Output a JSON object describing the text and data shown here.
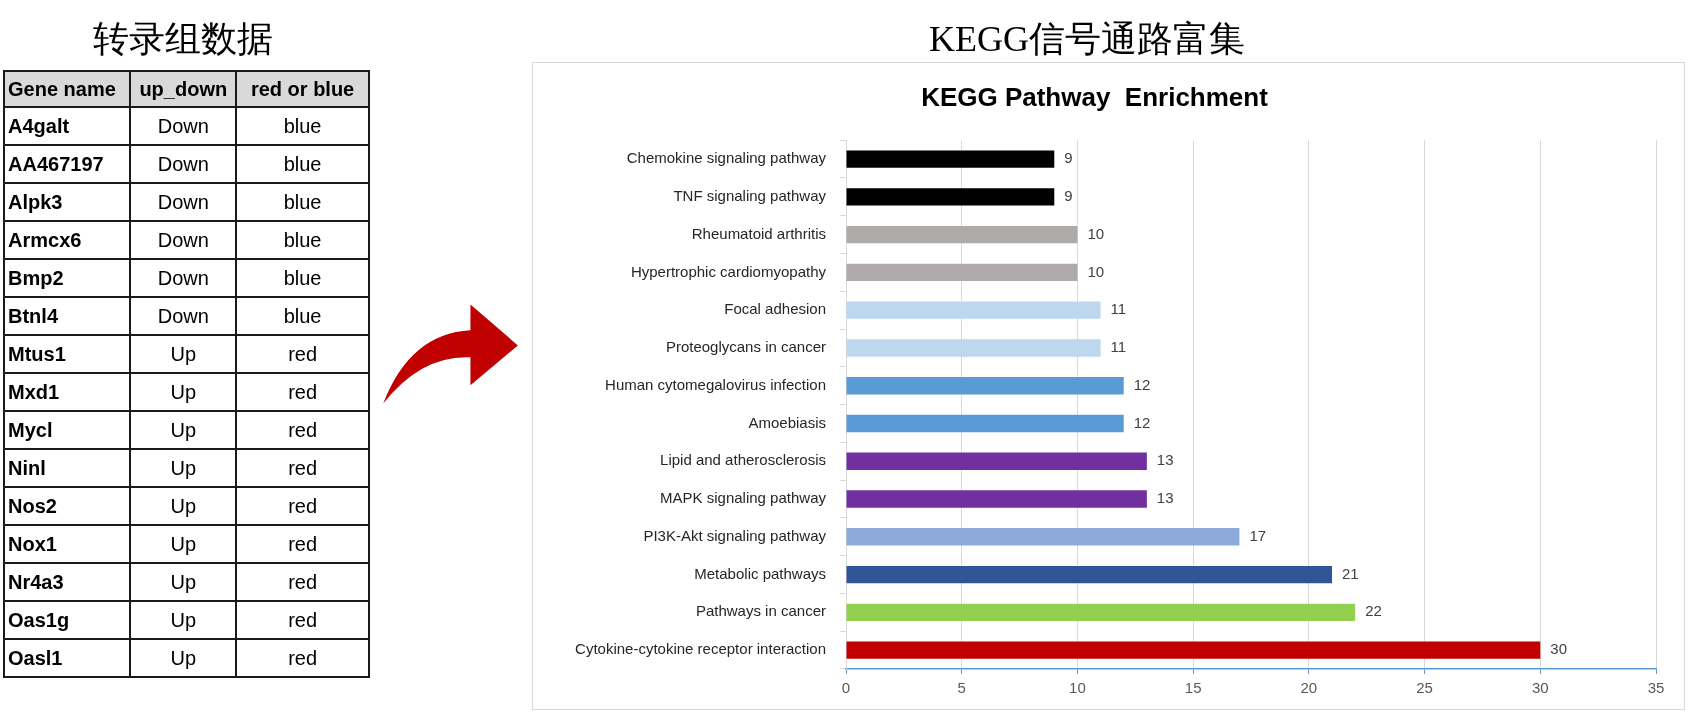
{
  "chart_data": [
    {
      "type": "other",
      "title": "转录组数据",
      "categories": [
        "Gene name",
        "up_down",
        "red or blue"
      ],
      "annotations": [
        "A4galt",
        "Down",
        "blue",
        "AA467197",
        "Down",
        "blue",
        "Alpk3",
        "Down",
        "blue",
        "Armcx6",
        "Down",
        "blue",
        "Bmp2",
        "Down",
        "blue",
        "Btnl4",
        "Down",
        "blue",
        "Mtus1",
        "Up",
        "red",
        "Mxd1",
        "Up",
        "red",
        "Mycl",
        "Up",
        "red",
        "Ninl",
        "Up",
        "red",
        "Nos2",
        "Up",
        "red",
        "Nox1",
        "Up",
        "red",
        "Nr4a3",
        "Up",
        "red",
        "Oas1g",
        "Up",
        "red",
        "Oasl1",
        "Up",
        "red"
      ]
    },
    {
      "type": "bar",
      "title": "KEGG信号通路富集",
      "subtitle": "KEGG Pathway  Enrichment",
      "orientation": "horizontal",
      "categories": [
        "Chemokine signaling pathway",
        "TNF signaling pathway",
        "Rheumatoid arthritis",
        "Hypertrophic cardiomyopathy",
        "Focal adhesion",
        "Proteoglycans in cancer",
        "Human cytomegalovirus infection",
        "Amoebiasis",
        "Lipid and atherosclerosis",
        "MAPK signaling pathway",
        "PI3K-Akt signaling pathway",
        "Metabolic pathways",
        "Pathways in cancer",
        "Cytokine-cytokine receptor interaction"
      ],
      "values": [
        9,
        9,
        10,
        10,
        11,
        11,
        12,
        12,
        13,
        13,
        17,
        21,
        22,
        30
      ],
      "colors": [
        "#000000",
        "#000000",
        "#aeaaaa",
        "#aeaaaa",
        "#bdd7ee",
        "#bdd7ee",
        "#5b9bd5",
        "#5b9bd5",
        "#7030a0",
        "#7030a0",
        "#8eaadb",
        "#2f5597",
        "#92d050",
        "#c00000"
      ],
      "xlim": [
        0,
        35
      ],
      "xticks": [
        0,
        5,
        10,
        15,
        20,
        25,
        30,
        35
      ],
      "grid": "x",
      "data_labels": true
    }
  ]
}
